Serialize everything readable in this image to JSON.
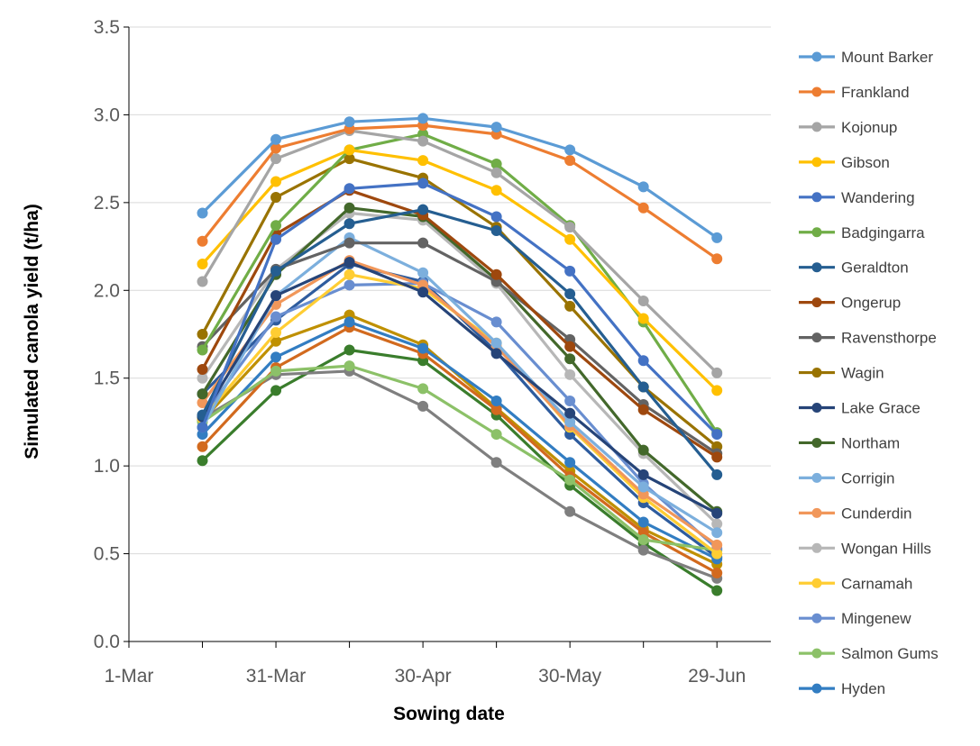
{
  "chart_data": {
    "type": "line",
    "title": "",
    "xlabel": "Sowing date",
    "ylabel": "Simulated canola yield (t/ha)",
    "x_tick_labels": [
      "1-Mar",
      "31-Mar",
      "30-Apr",
      "30-May",
      "29-Jun"
    ],
    "y_tick_labels": [
      "0.0",
      "0.5",
      "1.0",
      "1.5",
      "2.0",
      "2.5",
      "3.0",
      "3.5"
    ],
    "ylim": [
      0,
      3.5
    ],
    "xlim": [
      "1-Mar",
      "10-Jul"
    ],
    "grid": "horizontal",
    "legend_position": "right",
    "x": [
      "16-Mar",
      "31-Mar",
      "15-Apr",
      "30-Apr",
      "15-May",
      "30-May",
      "14-Jun",
      "29-Jun"
    ],
    "series": [
      {
        "name": "Mount Barker",
        "color": "#5B9BD5",
        "values": [
          2.44,
          2.86,
          2.96,
          2.98,
          2.93,
          2.8,
          2.59,
          2.3
        ]
      },
      {
        "name": "Frankland",
        "color": "#ED7D31",
        "values": [
          2.28,
          2.81,
          2.92,
          2.94,
          2.89,
          2.74,
          2.47,
          2.18
        ]
      },
      {
        "name": "Kojonup",
        "color": "#A5A5A5",
        "values": [
          2.05,
          2.75,
          2.91,
          2.85,
          2.67,
          2.36,
          1.94,
          1.53
        ]
      },
      {
        "name": "Gibson",
        "color": "#FFC000",
        "values": [
          2.15,
          2.62,
          2.8,
          2.74,
          2.57,
          2.29,
          1.84,
          1.43
        ]
      },
      {
        "name": "Wandering",
        "color": "#4472C4",
        "values": [
          1.22,
          2.29,
          2.58,
          2.61,
          2.42,
          2.11,
          1.6,
          1.18
        ]
      },
      {
        "name": "Badgingarra",
        "color": "#70AD47",
        "values": [
          1.66,
          2.37,
          2.8,
          2.89,
          2.72,
          2.37,
          1.82,
          1.19
        ]
      },
      {
        "name": "Geraldton",
        "color": "#255E91",
        "values": [
          1.29,
          2.11,
          2.38,
          2.46,
          2.34,
          1.98,
          1.45,
          0.95
        ]
      },
      {
        "name": "Ongerup",
        "color": "#9E480E",
        "values": [
          1.55,
          2.32,
          2.57,
          2.43,
          2.09,
          1.68,
          1.32,
          1.05
        ]
      },
      {
        "name": "Ravensthorpe",
        "color": "#636363",
        "values": [
          1.68,
          2.12,
          2.27,
          2.27,
          2.05,
          1.72,
          1.35,
          1.07
        ]
      },
      {
        "name": "Wagin",
        "color": "#997300",
        "values": [
          1.75,
          2.53,
          2.75,
          2.64,
          2.36,
          1.91,
          1.45,
          1.11
        ]
      },
      {
        "name": "Lake Grace",
        "color": "#264478",
        "values": [
          1.28,
          1.97,
          2.16,
          1.99,
          1.64,
          1.3,
          0.95,
          0.73
        ]
      },
      {
        "name": "Northam",
        "color": "#43682B",
        "values": [
          1.41,
          2.09,
          2.47,
          2.42,
          2.06,
          1.61,
          1.09,
          0.74
        ]
      },
      {
        "name": "Corrigin",
        "color": "#7CAFDD",
        "values": [
          1.22,
          1.97,
          2.3,
          2.1,
          1.7,
          1.25,
          0.88,
          0.62
        ]
      },
      {
        "name": "Cunderdin",
        "color": "#F1975A",
        "values": [
          1.36,
          1.92,
          2.17,
          2.03,
          1.68,
          1.23,
          0.84,
          0.55
        ]
      },
      {
        "name": "Wongan Hills",
        "color": "#B7B7B7",
        "values": [
          1.5,
          2.12,
          2.44,
          2.4,
          2.04,
          1.52,
          1.07,
          0.67
        ]
      },
      {
        "name": "Carnamah",
        "color": "#FFCD33",
        "values": [
          1.27,
          1.76,
          2.09,
          2.01,
          1.7,
          1.22,
          0.82,
          0.5
        ]
      },
      {
        "name": "Mingenew",
        "color": "#698ED0",
        "values": [
          1.28,
          1.85,
          2.03,
          2.04,
          1.82,
          1.37,
          0.9,
          0.53
        ]
      },
      {
        "name": "Salmon Gums",
        "color": "#8CC168",
        "values": [
          1.25,
          1.54,
          1.57,
          1.44,
          1.18,
          0.92,
          0.58,
          0.52
        ]
      },
      {
        "name": "Hyden",
        "color": "#327DC2",
        "values": [
          1.18,
          1.62,
          1.82,
          1.67,
          1.37,
          1.02,
          0.68,
          0.47
        ]
      },
      {
        "name": "",
        "color": "#D26A1E",
        "values": [
          1.11,
          1.56,
          1.79,
          1.64,
          1.32,
          0.94,
          0.62,
          0.39
        ]
      },
      {
        "name": "",
        "color": "#7F7F7F",
        "values": [
          1.27,
          1.52,
          1.54,
          1.34,
          1.02,
          0.74,
          0.52,
          0.36
        ]
      },
      {
        "name": "",
        "color": "#BF9000",
        "values": [
          1.26,
          1.71,
          1.86,
          1.69,
          1.33,
          0.97,
          0.64,
          0.44
        ]
      },
      {
        "name": "",
        "color": "#3A7D2C",
        "values": [
          1.03,
          1.43,
          1.66,
          1.6,
          1.29,
          0.89,
          0.56,
          0.29
        ]
      },
      {
        "name": "",
        "color": "#2E5C9E",
        "values": [
          1.41,
          1.83,
          2.15,
          2.05,
          1.65,
          1.18,
          0.79,
          0.48
        ]
      }
    ]
  }
}
